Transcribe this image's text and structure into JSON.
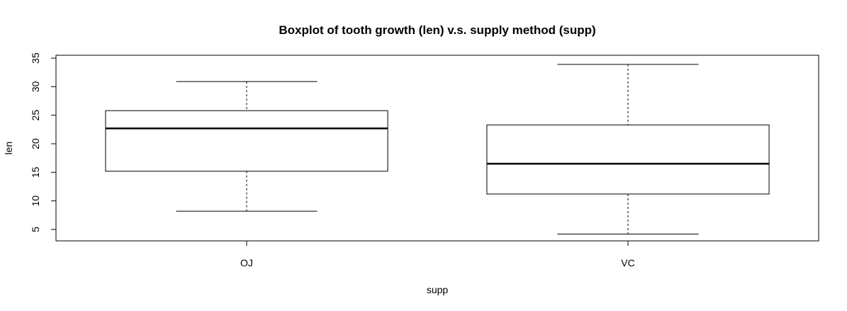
{
  "chart_data": {
    "type": "boxplot",
    "title": "Boxplot of tooth growth (len) v.s. supply method (supp)",
    "xlabel": "supp",
    "ylabel": "len",
    "ylim": [
      3,
      35.5
    ],
    "yticks": [
      5,
      10,
      15,
      20,
      25,
      30,
      35
    ],
    "categories": [
      "OJ",
      "VC"
    ],
    "boxes": [
      {
        "category": "OJ",
        "min": 8.2,
        "q1": 15.2,
        "median": 22.7,
        "q3": 25.8,
        "max": 30.9
      },
      {
        "category": "VC",
        "min": 4.2,
        "q1": 11.2,
        "median": 16.5,
        "q3": 23.3,
        "max": 33.9
      }
    ],
    "grid": false,
    "legend": "none"
  }
}
